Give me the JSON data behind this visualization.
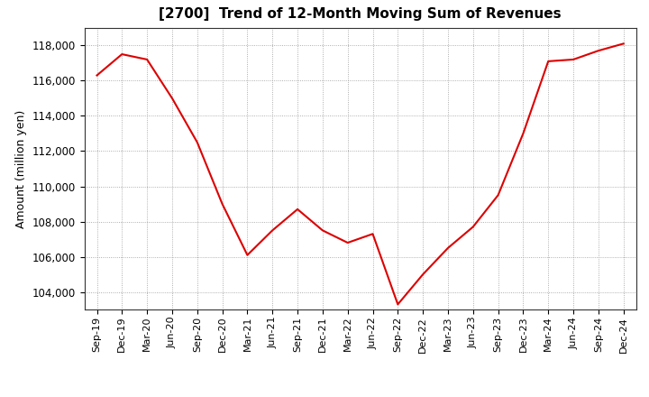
{
  "title": "[2700]  Trend of 12-Month Moving Sum of Revenues",
  "ylabel": "Amount (million yen)",
  "line_color": "#dd0000",
  "background_color": "#ffffff",
  "grid_color": "#999999",
  "ylim": [
    103000,
    119000
  ],
  "yticks": [
    104000,
    106000,
    108000,
    110000,
    112000,
    114000,
    116000,
    118000
  ],
  "labels": [
    "Sep-19",
    "Dec-19",
    "Mar-20",
    "Jun-20",
    "Sep-20",
    "Dec-20",
    "Mar-21",
    "Jun-21",
    "Sep-21",
    "Dec-21",
    "Mar-22",
    "Jun-22",
    "Sep-22",
    "Dec-22",
    "Mar-23",
    "Jun-23",
    "Sep-23",
    "Dec-23",
    "Mar-24",
    "Jun-24",
    "Sep-24",
    "Dec-24"
  ],
  "values": [
    116300,
    117500,
    117200,
    115000,
    112500,
    109000,
    106100,
    107500,
    108700,
    107500,
    106800,
    107300,
    103300,
    105000,
    106500,
    107700,
    109500,
    113000,
    117100,
    117200,
    117700,
    118100
  ]
}
